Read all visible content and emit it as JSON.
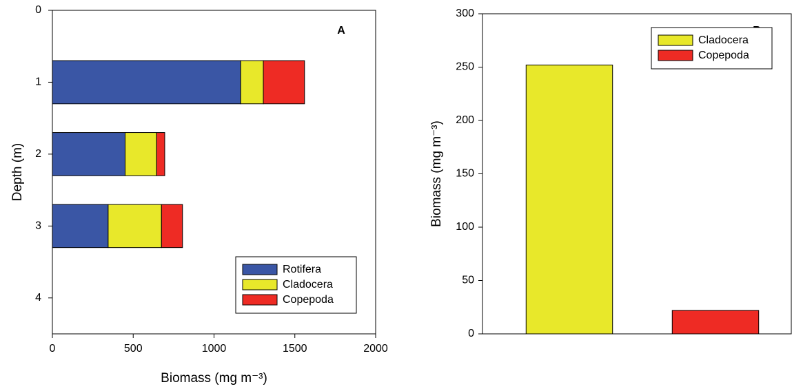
{
  "chart_data": [
    {
      "type": "bar",
      "orientation": "horizontal",
      "stacked": true,
      "annotation": "A",
      "x_label": "Biomass (mg m⁻³)",
      "y_label": "Depth (m)",
      "y": [
        1,
        2,
        3
      ],
      "series": [
        {
          "name": "Rotifera",
          "color": "#3a56a5",
          "values": [
            1165,
            450,
            345
          ]
        },
        {
          "name": "Cladocera",
          "color": "#e8e82a",
          "values": [
            140,
            195,
            330
          ]
        },
        {
          "name": "Copepoda",
          "color": "#ee2b24",
          "values": [
            255,
            50,
            130
          ]
        }
      ],
      "xlim": [
        0,
        2000
      ],
      "xticks": [
        0,
        500,
        1000,
        1500,
        2000
      ],
      "ylim": [
        0,
        4.5
      ],
      "yticks": [
        0,
        1,
        2,
        3,
        4
      ],
      "y_inverted": true,
      "legend": "lower right"
    },
    {
      "type": "bar",
      "annotation": "B",
      "y_label": "Biomass (mg m⁻³)",
      "categories": [
        null,
        null
      ],
      "series": [
        {
          "name": "Cladocera",
          "color": "#e8e82a",
          "values": [
            252,
            null
          ]
        },
        {
          "name": "Copepoda",
          "color": "#ee2b24",
          "values": [
            null,
            22
          ]
        }
      ],
      "ylim": [
        0,
        300
      ],
      "yticks": [
        0,
        50,
        100,
        150,
        200,
        250,
        300
      ],
      "legend": "upper right"
    }
  ]
}
